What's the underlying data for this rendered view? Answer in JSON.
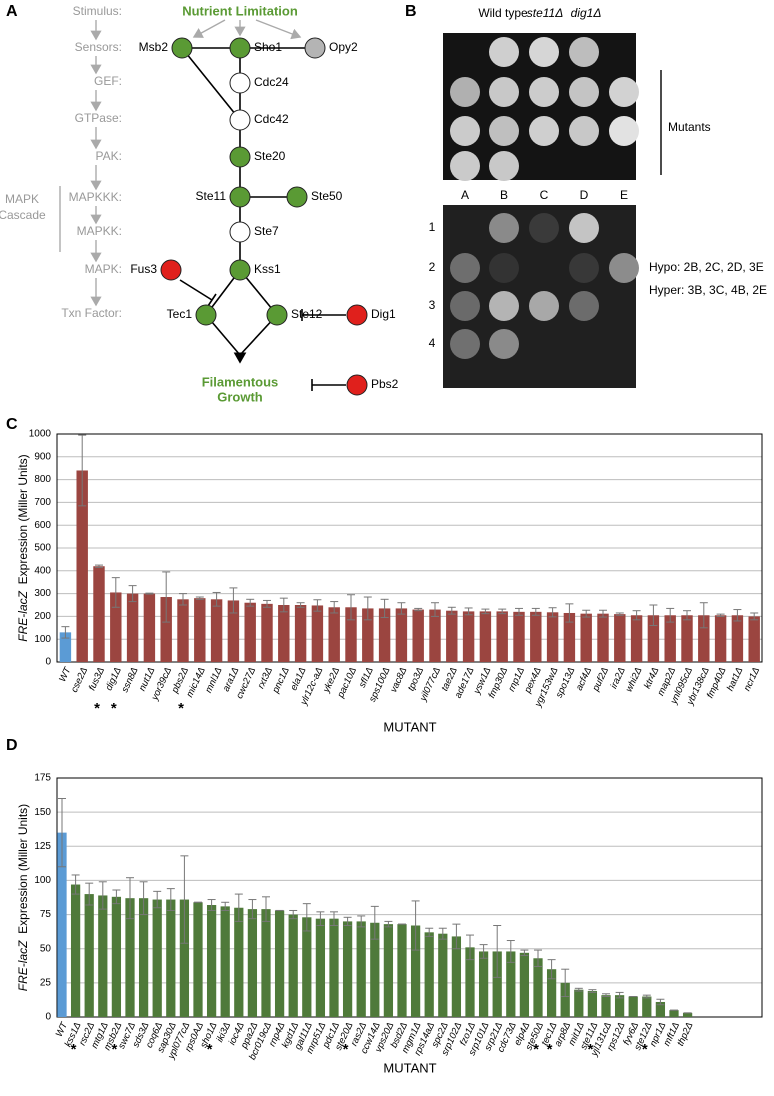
{
  "panel_a": {
    "label": "A",
    "levels": [
      "Stimulus:",
      "Sensors:",
      "GEF:",
      "GTPase:",
      "PAK:",
      "MAPKKK:",
      "MAPKK:",
      "MAPK:",
      "Txn Factor:"
    ],
    "cascade": [
      "MAPK",
      "Cascade"
    ],
    "stimulus": "Nutrient Limitation",
    "output": [
      "Filamentous",
      "Growth"
    ],
    "nodes": [
      {
        "label": "Msb2",
        "fill": "#5a9a34"
      },
      {
        "label": "Sho1",
        "fill": "#5a9a34"
      },
      {
        "label": "Opy2",
        "fill": "#b4b4b4"
      },
      {
        "label": "Cdc24",
        "fill": "#ffffff"
      },
      {
        "label": "Cdc42",
        "fill": "#ffffff"
      },
      {
        "label": "Ste20",
        "fill": "#5a9a34"
      },
      {
        "label": "Ste11",
        "fill": "#5a9a34"
      },
      {
        "label": "Ste50",
        "fill": "#5a9a34"
      },
      {
        "label": "Ste7",
        "fill": "#ffffff"
      },
      {
        "label": "Kss1",
        "fill": "#5a9a34"
      },
      {
        "label": "Fus3",
        "fill": "#e0201c"
      },
      {
        "label": "Tec1",
        "fill": "#5a9a34"
      },
      {
        "label": "Ste12",
        "fill": "#5a9a34"
      },
      {
        "label": "Dig1",
        "fill": "#e0201c"
      },
      {
        "label": "Pbs2",
        "fill": "#e0201c"
      }
    ]
  },
  "panel_b": {
    "label": "B",
    "top_labels": [
      "Wild type",
      "ste11Δ",
      "dig1Δ"
    ],
    "mutants": "Mutants",
    "columns": [
      "A",
      "B",
      "C",
      "D",
      "E"
    ],
    "rows": [
      "1",
      "2",
      "3",
      "4"
    ],
    "notes": [
      "Hypo: 2B, 2C, 2D, 3E",
      "Hyper: 3B, 3C, 4B, 2E"
    ]
  },
  "chart_data": [
    {
      "type": "bar",
      "panel": "C",
      "ylabel_gene": "FRE-lacZ",
      "ylabel": "Expression (Miller Units)",
      "xlabel": "MUTANT",
      "categories": [
        "WT",
        "cse2Δ",
        "fus3Δ",
        "dig1Δ",
        "ssn8Δ",
        "nut1Δ",
        "yor39cΔ",
        "pbs2Δ",
        "mic14Δ",
        "mnl1Δ",
        "ara1Δ",
        "cwc27Δ",
        "rxt3Δ",
        "pnc1Δ",
        "ela1Δ",
        "ylr12c-aΔ",
        "yke2Δ",
        "pac10Δ",
        "sfl1Δ",
        "sps100Δ",
        "vac8Δ",
        "tpo3Δ",
        "yil077cΔ",
        "tae2Δ",
        "ade17Δ",
        "ysw1Δ",
        "fmp30Δ",
        "rnp1Δ",
        "pex4Δ",
        "ygr153wΔ",
        "spo13Δ",
        "acf4Δ",
        "puf2Δ",
        "ira2Δ",
        "whi2Δ",
        "ktr4Δ",
        "map2Δ",
        "ynl095cΔ",
        "ybr138cΔ",
        "fmp40Δ",
        "hat1Δ",
        "ncr1Δ"
      ],
      "values": [
        130,
        840,
        420,
        305,
        300,
        300,
        285,
        275,
        280,
        275,
        270,
        260,
        255,
        250,
        250,
        248,
        240,
        240,
        235,
        235,
        235,
        230,
        230,
        225,
        222,
        222,
        222,
        220,
        220,
        218,
        215,
        212,
        212,
        210,
        205,
        205,
        205,
        205,
        205,
        205,
        205,
        200
      ],
      "errors": [
        25,
        155,
        5,
        65,
        35,
        2,
        110,
        25,
        5,
        30,
        55,
        15,
        15,
        30,
        10,
        25,
        25,
        55,
        50,
        40,
        25,
        5,
        30,
        15,
        15,
        10,
        10,
        15,
        15,
        20,
        40,
        15,
        15,
        5,
        20,
        45,
        30,
        20,
        55,
        5,
        25,
        15
      ],
      "bar_colors": [
        "#5b9bd5",
        "#9b4540",
        "#9b4540",
        "#9b4540",
        "#9b4540",
        "#9b4540",
        "#9b4540",
        "#9b4540",
        "#9b4540",
        "#9b4540",
        "#9b4540",
        "#9b4540",
        "#9b4540",
        "#9b4540",
        "#9b4540",
        "#9b4540",
        "#9b4540",
        "#9b4540",
        "#9b4540",
        "#9b4540",
        "#9b4540",
        "#9b4540",
        "#9b4540",
        "#9b4540",
        "#9b4540",
        "#9b4540",
        "#9b4540",
        "#9b4540",
        "#9b4540",
        "#9b4540",
        "#9b4540",
        "#9b4540",
        "#9b4540",
        "#9b4540",
        "#9b4540",
        "#9b4540",
        "#9b4540",
        "#9b4540",
        "#9b4540",
        "#9b4540",
        "#9b4540",
        "#9b4540"
      ],
      "markers": [
        null,
        null,
        "*",
        "*",
        null,
        null,
        null,
        "*",
        null,
        null,
        null,
        null,
        null,
        null,
        null,
        null,
        null,
        null,
        null,
        null,
        null,
        null,
        null,
        null,
        null,
        null,
        null,
        null,
        null,
        null,
        null,
        null,
        null,
        null,
        null,
        null,
        null,
        null,
        null,
        null,
        null,
        null
      ],
      "ylim": [
        0,
        1000
      ],
      "yticks": [
        0,
        100,
        200,
        300,
        400,
        500,
        600,
        700,
        800,
        900,
        1000
      ],
      "grid": true
    },
    {
      "type": "bar",
      "panel": "D",
      "ylabel_gene": "FRE-lacZ",
      "ylabel": "Expression (Miller Units)",
      "xlabel": "MUTANT",
      "categories": [
        "WT",
        "kss1Δ",
        "rsc2Δ",
        "mtg1Δ",
        "msb2Δ",
        "swc7Δ",
        "sds3Δ",
        "coq6Δ",
        "sap30Δ",
        "ypl077cΔ",
        "rps0AΔ",
        "sho1Δ",
        "iki3Δ",
        "ioc4Δ",
        "ppa2Δ",
        "bcr019cΔ",
        "rnp4Δ",
        "kgd1Δ",
        "gal11Δ",
        "mrp51Δ",
        "pdc1Δ",
        "ste20Δ",
        "ras2Δ",
        "ccw14Δ",
        "vps20Δ",
        "bsd2Δ",
        "mgm1Δ",
        "rps14aΔ",
        "spc2Δ",
        "srp102Δ",
        "fzo1Δ",
        "srp101Δ",
        "srp21Δ",
        "cdc73Δ",
        "elp4Δ",
        "ste50Δ",
        "tec1Δ",
        "arp8Δ",
        "mit1Δ",
        "ste11Δ",
        "yjl131cΔ",
        "rps12Δ",
        "fyv6Δ",
        "ste12Δ",
        "npr1Δ",
        "mft1Δ",
        "thp2Δ"
      ],
      "values": [
        135,
        97,
        90,
        89,
        88,
        87,
        87,
        86,
        86,
        86,
        84,
        82,
        81,
        80,
        79,
        79,
        78,
        75,
        73,
        72,
        72,
        70,
        70,
        69,
        68,
        68,
        67,
        62,
        61,
        59,
        51,
        48,
        48,
        48,
        47,
        43,
        35,
        25,
        20,
        19,
        16,
        16,
        15,
        15,
        11,
        5,
        3
      ],
      "errors": [
        25,
        7,
        8,
        10,
        5,
        15,
        12,
        6,
        8,
        32,
        0,
        4,
        3,
        10,
        7,
        9,
        0,
        3,
        10,
        5,
        5,
        3,
        4,
        12,
        2,
        0,
        18,
        3,
        4,
        9,
        9,
        5,
        19,
        8,
        2,
        6,
        7,
        10,
        1,
        1,
        1,
        2,
        0,
        1,
        2,
        0,
        0
      ],
      "bar_colors": [
        "#5b9bd5",
        "#4f7a3a",
        "#4f7a3a",
        "#4f7a3a",
        "#4f7a3a",
        "#4f7a3a",
        "#4f7a3a",
        "#4f7a3a",
        "#4f7a3a",
        "#4f7a3a",
        "#4f7a3a",
        "#4f7a3a",
        "#4f7a3a",
        "#4f7a3a",
        "#4f7a3a",
        "#4f7a3a",
        "#4f7a3a",
        "#4f7a3a",
        "#4f7a3a",
        "#4f7a3a",
        "#4f7a3a",
        "#4f7a3a",
        "#4f7a3a",
        "#4f7a3a",
        "#4f7a3a",
        "#4f7a3a",
        "#4f7a3a",
        "#4f7a3a",
        "#4f7a3a",
        "#4f7a3a",
        "#4f7a3a",
        "#4f7a3a",
        "#4f7a3a",
        "#4f7a3a",
        "#4f7a3a",
        "#4f7a3a",
        "#4f7a3a",
        "#4f7a3a",
        "#4f7a3a",
        "#4f7a3a",
        "#4f7a3a",
        "#4f7a3a",
        "#4f7a3a",
        "#4f7a3a",
        "#4f7a3a",
        "#4f7a3a",
        "#4f7a3a"
      ],
      "markers": [
        null,
        "*",
        null,
        null,
        "*",
        null,
        null,
        null,
        null,
        null,
        null,
        "*",
        null,
        null,
        null,
        null,
        null,
        null,
        null,
        null,
        null,
        "*",
        null,
        null,
        null,
        null,
        null,
        null,
        null,
        null,
        null,
        null,
        null,
        null,
        null,
        "*",
        "*",
        null,
        null,
        "*",
        null,
        null,
        null,
        "*",
        null,
        null,
        null
      ],
      "ylim": [
        0,
        175
      ],
      "yticks": [
        0,
        25,
        50,
        75,
        100,
        125,
        150,
        175
      ],
      "grid": true
    }
  ]
}
